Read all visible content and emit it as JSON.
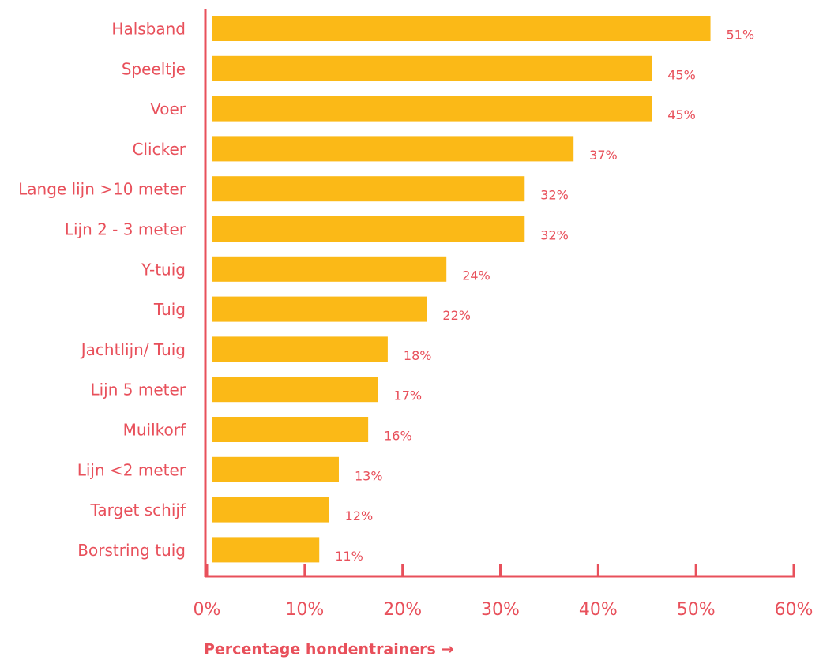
{
  "chart_data": {
    "type": "bar",
    "orientation": "horizontal",
    "x_label": "Percentage hondentrainers →",
    "categories": [
      "Halsband",
      "Speeltje",
      "Voer",
      "Clicker",
      "Lange lijn >10 meter",
      "Lijn 2 - 3 meter",
      "Y-tuig",
      "Tuig",
      "Jachtlijn/ Tuig",
      "Lijn 5 meter",
      "Muilkorf",
      "Lijn <2 meter",
      "Target schijf",
      "Borstring tuig"
    ],
    "values": [
      51,
      45,
      45,
      37,
      32,
      32,
      24,
      22,
      18,
      17,
      16,
      13,
      12,
      11
    ],
    "value_labels": [
      "51%",
      "45%",
      "45%",
      "37%",
      "32%",
      "32%",
      "24%",
      "22%",
      "18%",
      "17%",
      "16%",
      "13%",
      "12%",
      "11%"
    ],
    "color": "#fbb917",
    "axis_color": "#e8505b",
    "xlim": [
      0,
      60
    ],
    "xticks": [
      {
        "value": 0,
        "label": "0%"
      },
      {
        "value": 10,
        "label": "10%"
      },
      {
        "value": 20,
        "label": "20%"
      },
      {
        "value": 30,
        "label": "30%"
      },
      {
        "value": 40,
        "label": "40%"
      },
      {
        "value": 50,
        "label": "50%"
      },
      {
        "value": 60,
        "label": "60%"
      }
    ],
    "grid": false
  }
}
